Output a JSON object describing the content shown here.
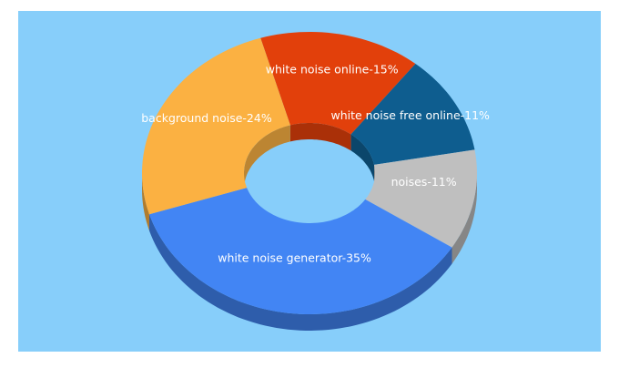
{
  "chart_data": {
    "type": "donut",
    "values": [
      15,
      11,
      11,
      35,
      24
    ],
    "value_labels": [
      "white noise online-15%",
      "white noise free online-11%",
      "noises-11%",
      "white noise generator-35%",
      "background noise-24%"
    ],
    "colors": [
      "#e2400b",
      "#0e5d8f",
      "#bfbfbf",
      "#4285f4",
      "#fbb142"
    ]
  }
}
